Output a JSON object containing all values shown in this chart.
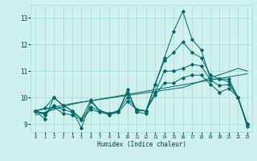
{
  "xlabel": "Humidex (Indice chaleur)",
  "xlim": [
    -0.5,
    23.5
  ],
  "ylim": [
    8.7,
    13.5
  ],
  "yticks": [
    9,
    10,
    11,
    12,
    13
  ],
  "xticks": [
    0,
    1,
    2,
    3,
    4,
    5,
    6,
    7,
    8,
    9,
    10,
    11,
    12,
    13,
    14,
    15,
    16,
    17,
    18,
    19,
    20,
    21,
    22,
    23
  ],
  "background_color": "#cff0ec",
  "grid_color": "#a8d8d0",
  "line_color": "#006868",
  "series": [
    [
      9.5,
      9.2,
      10.0,
      9.7,
      9.5,
      8.85,
      9.85,
      9.5,
      9.4,
      9.45,
      10.3,
      9.45,
      9.4,
      10.5,
      11.5,
      12.5,
      13.25,
      12.2,
      11.8,
      10.7,
      10.7,
      10.6,
      10.0,
      8.9
    ],
    [
      9.5,
      9.6,
      10.0,
      9.7,
      9.5,
      9.2,
      9.9,
      9.5,
      9.4,
      9.5,
      10.2,
      9.5,
      9.5,
      10.5,
      11.4,
      11.7,
      12.1,
      11.7,
      11.5,
      10.85,
      10.7,
      10.7,
      10.0,
      9.0
    ],
    [
      9.5,
      9.35,
      9.65,
      9.4,
      9.35,
      9.15,
      9.55,
      9.45,
      9.35,
      9.45,
      9.85,
      9.55,
      9.5,
      10.1,
      10.55,
      10.55,
      10.75,
      10.85,
      10.85,
      10.5,
      10.2,
      10.35,
      10.0,
      9.0
    ],
    [
      9.5,
      9.4,
      9.7,
      9.55,
      9.45,
      9.2,
      9.65,
      9.5,
      9.4,
      9.5,
      10.0,
      9.55,
      9.5,
      10.2,
      11.0,
      11.0,
      11.1,
      11.25,
      11.2,
      10.65,
      10.45,
      10.5,
      10.0,
      9.0
    ]
  ],
  "trend_series": [
    [
      9.35,
      9.45,
      9.55,
      9.65,
      9.75,
      9.82,
      9.88,
      9.94,
      10.0,
      10.06,
      10.12,
      10.18,
      10.24,
      10.3,
      10.36,
      10.42,
      10.48,
      10.54,
      10.6,
      10.66,
      10.72,
      10.78,
      10.84,
      10.9
    ],
    [
      9.5,
      9.57,
      9.64,
      9.71,
      9.78,
      9.83,
      9.88,
      9.93,
      9.98,
      10.03,
      10.08,
      10.13,
      10.18,
      10.23,
      10.28,
      10.33,
      10.38,
      10.5,
      10.62,
      10.74,
      10.86,
      10.98,
      11.1,
      11.0
    ]
  ]
}
